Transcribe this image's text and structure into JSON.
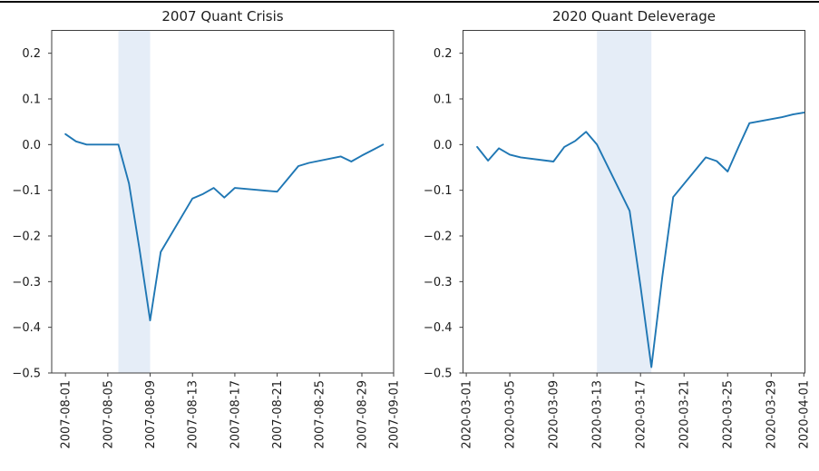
{
  "style": {
    "background": "#ffffff",
    "top_rule_color": "#0d0d0d",
    "line_color": "#1f77b4",
    "band_color": "#e5edf7",
    "spine_color": "#3d3d3d",
    "text_color": "#1c1c1c"
  },
  "chart_data": [
    {
      "type": "line",
      "title": "2007 Quant Crisis",
      "x": [
        "2007-08-01",
        "2007-08-02",
        "2007-08-03",
        "2007-08-06",
        "2007-08-07",
        "2007-08-08",
        "2007-08-09",
        "2007-08-10",
        "2007-08-13",
        "2007-08-14",
        "2007-08-15",
        "2007-08-16",
        "2007-08-17",
        "2007-08-20",
        "2007-08-21",
        "2007-08-22",
        "2007-08-23",
        "2007-08-24",
        "2007-08-27",
        "2007-08-28",
        "2007-08-29",
        "2007-08-30",
        "2007-08-31"
      ],
      "y": [
        0.023,
        0.007,
        0.0,
        0.0,
        -0.085,
        -0.23,
        -0.385,
        -0.235,
        -0.118,
        -0.108,
        -0.095,
        -0.116,
        -0.095,
        -0.101,
        -0.103,
        -0.075,
        -0.047,
        -0.04,
        -0.026,
        -0.037,
        -0.024,
        -0.012,
        0.0
      ],
      "xtick_labels": [
        "2007-08-01",
        "2007-08-05",
        "2007-08-09",
        "2007-08-13",
        "2007-08-17",
        "2007-08-21",
        "2007-08-25",
        "2007-08-29",
        "2007-09-01"
      ],
      "yticks": [
        0.2,
        0.1,
        0.0,
        -0.1,
        -0.2,
        -0.3,
        -0.4,
        -0.5
      ],
      "ytick_labels": [
        "0.2",
        "0.1",
        "0.0",
        "−0.1",
        "−0.2",
        "−0.3",
        "−0.4",
        "−0.5"
      ],
      "ylim": [
        -0.5,
        0.25
      ],
      "x_domain_days": [
        -1.3,
        31.0
      ],
      "shaded_band": {
        "from": "2007-08-06",
        "to": "2007-08-09"
      },
      "grid": false,
      "legend": "none"
    },
    {
      "type": "line",
      "title": "2020 Quant Deleverage",
      "x": [
        "2020-03-02",
        "2020-03-03",
        "2020-03-04",
        "2020-03-05",
        "2020-03-06",
        "2020-03-09",
        "2020-03-10",
        "2020-03-11",
        "2020-03-12",
        "2020-03-13",
        "2020-03-16",
        "2020-03-17",
        "2020-03-18",
        "2020-03-19",
        "2020-03-20",
        "2020-03-23",
        "2020-03-24",
        "2020-03-25",
        "2020-03-26",
        "2020-03-27",
        "2020-03-30",
        "2020-03-31",
        "2020-04-01"
      ],
      "y": [
        -0.005,
        -0.035,
        -0.008,
        -0.022,
        -0.028,
        -0.037,
        -0.005,
        0.008,
        0.028,
        0.0,
        -0.145,
        -0.31,
        -0.487,
        -0.29,
        -0.115,
        -0.028,
        -0.036,
        -0.059,
        -0.005,
        0.047,
        0.06,
        0.066,
        0.07
      ],
      "xtick_labels": [
        "2020-03-01",
        "2020-03-05",
        "2020-03-09",
        "2020-03-13",
        "2020-03-17",
        "2020-03-21",
        "2020-03-25",
        "2020-03-29",
        "2020-04-01"
      ],
      "yticks": [
        0.2,
        0.1,
        0.0,
        -0.1,
        -0.2,
        -0.3,
        -0.4,
        -0.5
      ],
      "ytick_labels": [
        "0.2",
        "0.1",
        "0.0",
        "−0.1",
        "−0.2",
        "−0.3",
        "−0.4",
        "−0.5"
      ],
      "ylim": [
        -0.5,
        0.25
      ],
      "x_domain_days": [
        -0.3,
        31.1
      ],
      "shaded_band": {
        "from": "2020-03-13",
        "to": "2020-03-18"
      },
      "grid": false,
      "legend": "none"
    }
  ]
}
